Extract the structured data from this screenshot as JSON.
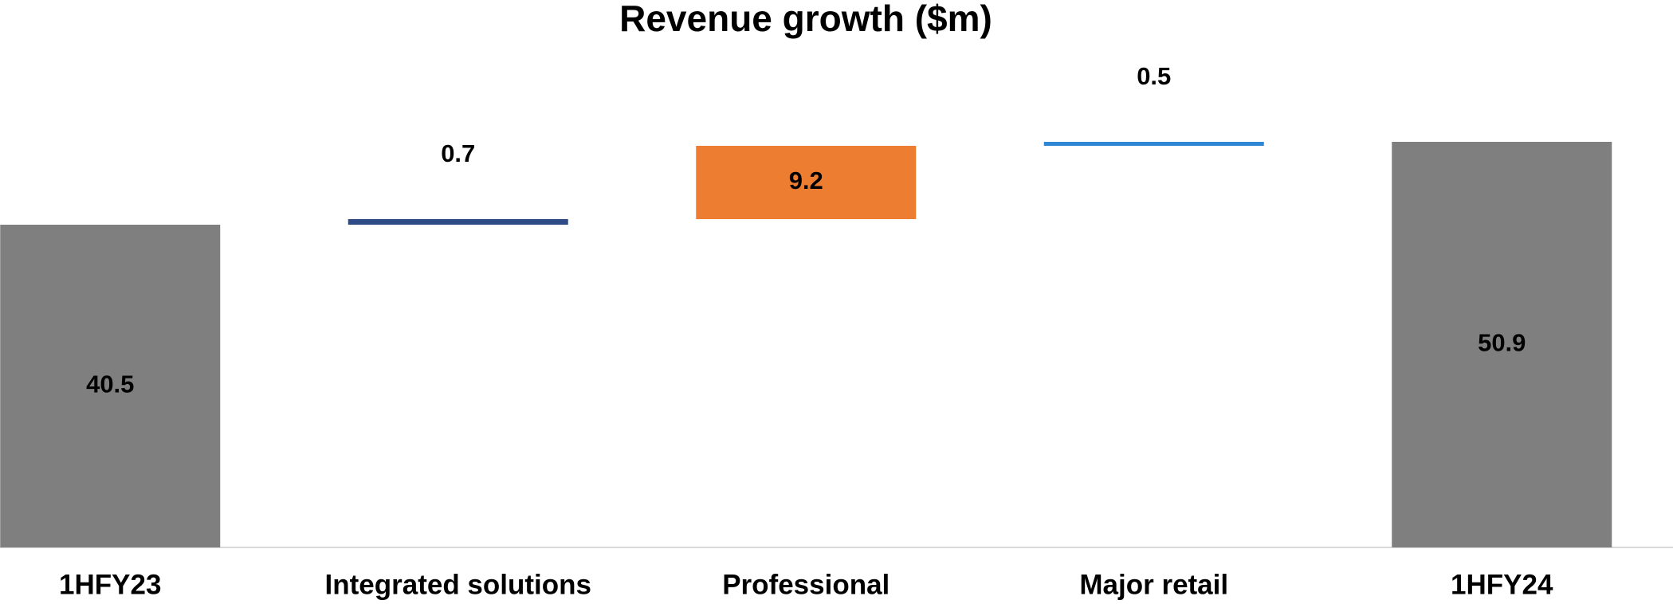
{
  "chart_data": {
    "type": "waterfall",
    "title": "Revenue growth ($m)",
    "categories": [
      "1HFY23",
      "Integrated solutions",
      "Professional",
      "Major retail",
      "1HFY24"
    ],
    "values": [
      40.5,
      0.7,
      9.2,
      0.5,
      50.9
    ],
    "colors": [
      "#7f7f7f",
      "#2f4b85",
      "#ed7d31",
      "#2e86d4",
      "#7f7f7f"
    ],
    "ylim": [
      0,
      60
    ]
  }
}
